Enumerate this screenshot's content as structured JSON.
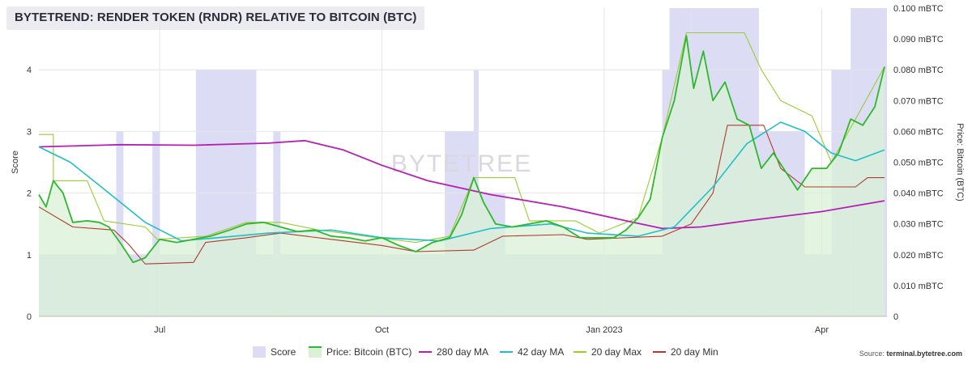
{
  "title": "BYTETREND: RENDER TOKEN (RNDR) RELATIVE TO BITCOIN (BTC)",
  "watermark": "BYTETREE",
  "source": {
    "prefix": "Source: ",
    "name": "terminal.bytetree.com"
  },
  "colors": {
    "score": "#dcdcf5",
    "price_fill": "#d9f2d6",
    "price_line": "#2db82d",
    "ma280": "#b51fb5",
    "ma42": "#1fbfc7",
    "max20": "#9acd32",
    "min20": "#b03a2e"
  },
  "chart_data": {
    "type": "line",
    "title": "BYTETREND: RENDER TOKEN (RNDR) RELATIVE TO BITCOIN (BTC)",
    "x_range": [
      "2022-05-12",
      "2023-04-28"
    ],
    "x_ticks": [
      {
        "date": "2022-07-01",
        "label": "Jul"
      },
      {
        "date": "2022-10-01",
        "label": "Oct"
      },
      {
        "date": "2023-01-01",
        "label": "Jan 2023"
      },
      {
        "date": "2023-04-01",
        "label": "Apr"
      }
    ],
    "y_left": {
      "label": "Score",
      "range": [
        0,
        5
      ],
      "ticks": [
        "0",
        "1",
        "2",
        "3",
        "4"
      ],
      "tick_values": [
        0,
        1,
        2,
        3,
        4
      ]
    },
    "y_right": {
      "label": "Price: Bitcoin (BTC)",
      "unit": "mBTC",
      "range": [
        0,
        0.1
      ],
      "ticks": [
        "0",
        "0.010 mBTC",
        "0.020 mBTC",
        "0.030 mBTC",
        "0.040 mBTC",
        "0.050 mBTC",
        "0.060 mBTC",
        "0.070 mBTC",
        "0.080 mBTC",
        "0.090 mBTC",
        "0.100 mBTC"
      ],
      "tick_values": [
        0,
        0.01,
        0.02,
        0.03,
        0.04,
        0.05,
        0.06,
        0.07,
        0.08,
        0.09,
        0.1
      ]
    },
    "legend": [
      "Score",
      "Price: Bitcoin (BTC)",
      "280 day MA",
      "42 day MA",
      "20 day Max",
      "20 day Min"
    ],
    "legend_position": "bottom",
    "grid": true,
    "score_series": [
      {
        "start": "2022-05-12",
        "end": "2022-06-13",
        "value": 1
      },
      {
        "start": "2022-06-13",
        "end": "2022-06-16",
        "value": 3
      },
      {
        "start": "2022-06-16",
        "end": "2022-06-28",
        "value": 1
      },
      {
        "start": "2022-06-28",
        "end": "2022-07-01",
        "value": 3
      },
      {
        "start": "2022-07-01",
        "end": "2022-07-16",
        "value": 1
      },
      {
        "start": "2022-07-16",
        "end": "2022-08-10",
        "value": 4
      },
      {
        "start": "2022-08-10",
        "end": "2022-08-17",
        "value": 1
      },
      {
        "start": "2022-08-17",
        "end": "2022-08-20",
        "value": 3
      },
      {
        "start": "2022-08-20",
        "end": "2022-10-27",
        "value": 1
      },
      {
        "start": "2022-10-27",
        "end": "2022-11-08",
        "value": 3
      },
      {
        "start": "2022-11-08",
        "end": "2022-11-10",
        "value": 4
      },
      {
        "start": "2022-11-10",
        "end": "2022-11-21",
        "value": 2
      },
      {
        "start": "2022-11-21",
        "end": "2023-01-25",
        "value": 1
      },
      {
        "start": "2023-01-25",
        "end": "2023-01-28",
        "value": 4
      },
      {
        "start": "2023-01-28",
        "end": "2023-02-06",
        "value": 5
      },
      {
        "start": "2023-02-06",
        "end": "2023-03-06",
        "value": 5
      },
      {
        "start": "2023-03-06",
        "end": "2023-03-25",
        "value": 3
      },
      {
        "start": "2023-03-25",
        "end": "2023-04-05",
        "value": 1
      },
      {
        "start": "2023-04-05",
        "end": "2023-04-13",
        "value": 4
      },
      {
        "start": "2023-04-13",
        "end": "2023-04-28",
        "value": 5
      }
    ],
    "series": [
      {
        "name": "Price: Bitcoin (BTC)",
        "axis": "right",
        "points": [
          [
            "2022-05-12",
            0.0395
          ],
          [
            "2022-05-15",
            0.0355
          ],
          [
            "2022-05-18",
            0.044
          ],
          [
            "2022-05-22",
            0.04
          ],
          [
            "2022-05-26",
            0.0305
          ],
          [
            "2022-06-01",
            0.031
          ],
          [
            "2022-06-06",
            0.0305
          ],
          [
            "2022-06-10",
            0.029
          ],
          [
            "2022-06-15",
            0.0235
          ],
          [
            "2022-06-20",
            0.0175
          ],
          [
            "2022-06-25",
            0.019
          ],
          [
            "2022-07-01",
            0.025
          ],
          [
            "2022-07-08",
            0.024
          ],
          [
            "2022-07-15",
            0.025
          ],
          [
            "2022-07-22",
            0.026
          ],
          [
            "2022-07-30",
            0.028
          ],
          [
            "2022-08-06",
            0.03
          ],
          [
            "2022-08-13",
            0.0305
          ],
          [
            "2022-08-20",
            0.029
          ],
          [
            "2022-08-27",
            0.0275
          ],
          [
            "2022-09-03",
            0.028
          ],
          [
            "2022-09-10",
            0.026
          ],
          [
            "2022-09-17",
            0.0255
          ],
          [
            "2022-09-24",
            0.0245
          ],
          [
            "2022-10-01",
            0.0255
          ],
          [
            "2022-10-08",
            0.023
          ],
          [
            "2022-10-15",
            0.021
          ],
          [
            "2022-10-22",
            0.024
          ],
          [
            "2022-10-29",
            0.0255
          ],
          [
            "2022-11-03",
            0.033
          ],
          [
            "2022-11-08",
            0.045
          ],
          [
            "2022-11-12",
            0.037
          ],
          [
            "2022-11-17",
            0.03
          ],
          [
            "2022-11-24",
            0.029
          ],
          [
            "2022-12-01",
            0.03
          ],
          [
            "2022-12-08",
            0.031
          ],
          [
            "2022-12-15",
            0.029
          ],
          [
            "2022-12-22",
            0.0255
          ],
          [
            "2022-12-29",
            0.0255
          ],
          [
            "2023-01-05",
            0.0255
          ],
          [
            "2023-01-10",
            0.028
          ],
          [
            "2023-01-15",
            0.032
          ],
          [
            "2023-01-20",
            0.038
          ],
          [
            "2023-01-25",
            0.058
          ],
          [
            "2023-01-30",
            0.07
          ],
          [
            "2023-02-04",
            0.091
          ],
          [
            "2023-02-07",
            0.074
          ],
          [
            "2023-02-11",
            0.086
          ],
          [
            "2023-02-15",
            0.07
          ],
          [
            "2023-02-20",
            0.076
          ],
          [
            "2023-02-25",
            0.064
          ],
          [
            "2023-03-02",
            0.062
          ],
          [
            "2023-03-07",
            0.048
          ],
          [
            "2023-03-12",
            0.053
          ],
          [
            "2023-03-17",
            0.047
          ],
          [
            "2023-03-22",
            0.041
          ],
          [
            "2023-03-28",
            0.048
          ],
          [
            "2023-04-03",
            0.048
          ],
          [
            "2023-04-08",
            0.053
          ],
          [
            "2023-04-13",
            0.064
          ],
          [
            "2023-04-18",
            0.062
          ],
          [
            "2023-04-23",
            0.068
          ],
          [
            "2023-04-27",
            0.081
          ]
        ]
      },
      {
        "name": "280 day MA",
        "axis": "right",
        "points": [
          [
            "2022-05-12",
            0.055
          ],
          [
            "2022-06-15",
            0.0557
          ],
          [
            "2022-07-15",
            0.0555
          ],
          [
            "2022-08-15",
            0.0562
          ],
          [
            "2022-08-30",
            0.057
          ],
          [
            "2022-09-15",
            0.054
          ],
          [
            "2022-10-01",
            0.049
          ],
          [
            "2022-10-20",
            0.044
          ],
          [
            "2022-11-15",
            0.0395
          ],
          [
            "2022-12-15",
            0.0355
          ],
          [
            "2023-01-10",
            0.031
          ],
          [
            "2023-01-25",
            0.0285
          ],
          [
            "2023-02-10",
            0.029
          ],
          [
            "2023-03-01",
            0.031
          ],
          [
            "2023-04-01",
            0.034
          ],
          [
            "2023-04-27",
            0.0375
          ]
        ]
      },
      {
        "name": "42 day MA",
        "axis": "right",
        "points": [
          [
            "2022-05-12",
            0.055
          ],
          [
            "2022-05-25",
            0.05
          ],
          [
            "2022-06-10",
            0.04
          ],
          [
            "2022-06-25",
            0.0305
          ],
          [
            "2022-07-10",
            0.0245
          ],
          [
            "2022-07-25",
            0.0255
          ],
          [
            "2022-08-15",
            0.027
          ],
          [
            "2022-09-10",
            0.028
          ],
          [
            "2022-10-01",
            0.0255
          ],
          [
            "2022-10-25",
            0.0245
          ],
          [
            "2022-11-15",
            0.0285
          ],
          [
            "2022-12-10",
            0.03
          ],
          [
            "2022-12-25",
            0.027
          ],
          [
            "2023-01-15",
            0.026
          ],
          [
            "2023-01-30",
            0.029
          ],
          [
            "2023-02-15",
            0.042
          ],
          [
            "2023-03-01",
            0.056
          ],
          [
            "2023-03-15",
            0.063
          ],
          [
            "2023-03-25",
            0.06
          ],
          [
            "2023-04-05",
            0.053
          ],
          [
            "2023-04-15",
            0.0505
          ],
          [
            "2023-04-27",
            0.054
          ]
        ]
      },
      {
        "name": "20 day Max",
        "axis": "right",
        "points": [
          [
            "2022-05-12",
            0.059
          ],
          [
            "2022-05-18",
            0.059
          ],
          [
            "2022-05-18",
            0.044
          ],
          [
            "2022-06-01",
            0.044
          ],
          [
            "2022-06-08",
            0.031
          ],
          [
            "2022-06-25",
            0.029
          ],
          [
            "2022-06-30",
            0.025
          ],
          [
            "2022-07-20",
            0.026
          ],
          [
            "2022-08-06",
            0.0305
          ],
          [
            "2022-08-20",
            0.0305
          ],
          [
            "2022-09-05",
            0.028
          ],
          [
            "2022-09-24",
            0.026
          ],
          [
            "2022-10-15",
            0.024
          ],
          [
            "2022-10-29",
            0.026
          ],
          [
            "2022-11-08",
            0.045
          ],
          [
            "2022-11-25",
            0.045
          ],
          [
            "2022-12-01",
            0.031
          ],
          [
            "2022-12-20",
            0.031
          ],
          [
            "2022-12-30",
            0.027
          ],
          [
            "2023-01-15",
            0.032
          ],
          [
            "2023-01-25",
            0.058
          ],
          [
            "2023-02-04",
            0.092
          ],
          [
            "2023-02-28",
            0.092
          ],
          [
            "2023-03-07",
            0.08
          ],
          [
            "2023-03-15",
            0.07
          ],
          [
            "2023-03-28",
            0.065
          ],
          [
            "2023-04-05",
            0.05
          ],
          [
            "2023-04-15",
            0.064
          ],
          [
            "2023-04-27",
            0.081
          ]
        ]
      },
      {
        "name": "20 day Min",
        "axis": "right",
        "points": [
          [
            "2022-05-12",
            0.0355
          ],
          [
            "2022-05-26",
            0.029
          ],
          [
            "2022-06-12",
            0.028
          ],
          [
            "2022-06-18",
            0.0235
          ],
          [
            "2022-06-25",
            0.017
          ],
          [
            "2022-07-15",
            0.0175
          ],
          [
            "2022-07-20",
            0.024
          ],
          [
            "2022-08-06",
            0.0255
          ],
          [
            "2022-08-20",
            0.027
          ],
          [
            "2022-09-10",
            0.025
          ],
          [
            "2022-10-01",
            0.023
          ],
          [
            "2022-10-15",
            0.021
          ],
          [
            "2022-11-08",
            0.0215
          ],
          [
            "2022-11-20",
            0.026
          ],
          [
            "2022-12-15",
            0.0265
          ],
          [
            "2022-12-25",
            0.025
          ],
          [
            "2023-01-25",
            0.026
          ],
          [
            "2023-02-06",
            0.03
          ],
          [
            "2023-02-15",
            0.04
          ],
          [
            "2023-02-21",
            0.062
          ],
          [
            "2023-03-08",
            0.062
          ],
          [
            "2023-03-15",
            0.048
          ],
          [
            "2023-03-25",
            0.042
          ],
          [
            "2023-04-15",
            0.042
          ],
          [
            "2023-04-20",
            0.045
          ],
          [
            "2023-04-27",
            0.045
          ]
        ]
      }
    ]
  }
}
